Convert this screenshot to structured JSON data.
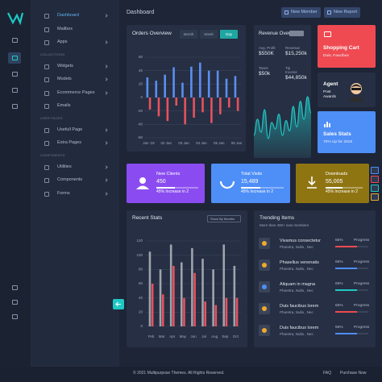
{
  "sidebar": {
    "items": [
      "Dashboard",
      "Mailbox",
      "Apps"
    ],
    "sections": [
      {
        "title": "COLLECTIONS",
        "items": [
          "Widgets",
          "Models",
          "Ecommerce Pages",
          "Emails"
        ]
      },
      {
        "title": "USER PAGES",
        "items": [
          "Usefull Page",
          "Extra Pages"
        ]
      },
      {
        "title": "COMPONENTS",
        "items": [
          "Utilities",
          "Components",
          "Forms"
        ]
      }
    ]
  },
  "header": {
    "title": "Dashboard",
    "buttons": [
      "New Member",
      "New Report"
    ]
  },
  "orders": {
    "tabs": [
      "Month",
      "Week",
      "Day"
    ]
  },
  "revenue": {
    "title": "Revenue Overview",
    "stats": [
      {
        "label": "Avg. Profit",
        "value": "$550K"
      },
      {
        "label": "Revenue",
        "value": "$15,250k"
      },
      {
        "label": "Taxes",
        "value": "$50k"
      },
      {
        "label": "Tip Income",
        "value": "$44,850k"
      }
    ]
  },
  "side_cards": [
    {
      "title": "Shopping Cart",
      "subtitle": "Duis, Faucibus",
      "color": "#ef4a52"
    },
    {
      "title": "Agent",
      "subtitle": "Post Awards",
      "color": "#262f43"
    },
    {
      "title": "Sales Stats",
      "subtitle": "70% Up for 2019",
      "color": "#4e8ef7"
    }
  ],
  "stat_cards": [
    {
      "title": "New Clients",
      "value": "450",
      "note": "45% Increase in 2",
      "color": "#8a4cf0"
    },
    {
      "title": "Total Visits",
      "value": "15,489",
      "note": "45% Increase in 2",
      "color": "#4e8ef7"
    },
    {
      "title": "Downloads",
      "value": "55,005",
      "note": "45% Increase in 2",
      "color": "#8f7512"
    }
  ],
  "recent": {
    "title": "Recent Stats",
    "dropdown": "Show By Months"
  },
  "trending": {
    "title": "Trending Items",
    "subtitle": "More than 400+ new members",
    "items": [
      {
        "name": "Vivamus consectetur",
        "subtitle": "Pharetra, Nulla , Nec",
        "percent": 65,
        "percent_label": "65%",
        "status": "Progress",
        "color": "#ef4a52"
      },
      {
        "name": "Phasellus venenatis",
        "subtitle": "Pharetra, Nulla , Nec",
        "percent": 65,
        "percent_label": "65%",
        "status": "Progress",
        "color": "#4e8ef7"
      },
      {
        "name": "Aliquam in magna",
        "subtitle": "Pharetra, Nulla , Nec",
        "percent": 65,
        "percent_label": "65%",
        "status": "Progress",
        "color": "#1fc8c4"
      },
      {
        "name": "Duis faucibus lorem",
        "subtitle": "Pharetra, Nulla , Nec",
        "percent": 65,
        "percent_label": "65%",
        "status": "Progress",
        "color": "#ef4a52"
      },
      {
        "name": "Duis faucibus lorem",
        "subtitle": "Pharetra, Nulla , Nec",
        "percent": 65,
        "percent_label": "65%",
        "status": "Progress",
        "color": "#4e8ef7"
      }
    ]
  },
  "footer": {
    "copyright": "© 2021 Multipurpose Themes. All Rights Reserved.",
    "links": [
      "FAQ",
      "Purchase Now"
    ]
  },
  "chart_data": [
    {
      "type": "bar",
      "title": "Orders Overview",
      "categories": [
        "Jan '19",
        null,
        "02 Jan",
        null,
        "03 Jan",
        null,
        "04 Jan",
        null,
        "05 Jan",
        null,
        "06 Jan"
      ],
      "series": [
        {
          "color": "#5b8ff0",
          "values": [
            30,
            25,
            34,
            45,
            22,
            46,
            52,
            40,
            40,
            28,
            32
          ]
        },
        {
          "color": "#e8515e",
          "values": [
            -18,
            -28,
            -35,
            -12,
            -40,
            -30,
            -22,
            -38,
            -25,
            -15,
            -20
          ]
        }
      ],
      "ylim": [
        -60,
        60
      ],
      "yticks": [
        60,
        40,
        20,
        0,
        -20,
        -40,
        -60
      ],
      "grid": true
    },
    {
      "type": "area",
      "color": "#1fc8c4",
      "values": [
        35,
        60,
        40,
        75,
        30,
        55,
        45,
        68,
        35,
        58,
        42,
        80,
        48,
        88,
        60,
        95,
        70
      ],
      "ylim": [
        0,
        100
      ]
    },
    {
      "type": "bar",
      "title": "Recent Stats",
      "categories": [
        "Feb",
        "Mar",
        "Apr",
        "May",
        "Jun",
        "Jul",
        "Aug",
        "Sep",
        "Oct"
      ],
      "series": [
        {
          "color": "#9ea3ad",
          "values": [
            105,
            80,
            115,
            90,
            110,
            95,
            80,
            115,
            85
          ]
        },
        {
          "color": "#e8515e",
          "values": [
            60,
            45,
            85,
            40,
            75,
            35,
            30,
            40,
            40
          ]
        }
      ],
      "ylim": [
        0,
        120
      ],
      "yticks": [
        120,
        100,
        80,
        60,
        40,
        20,
        0
      ],
      "grid": true
    }
  ]
}
